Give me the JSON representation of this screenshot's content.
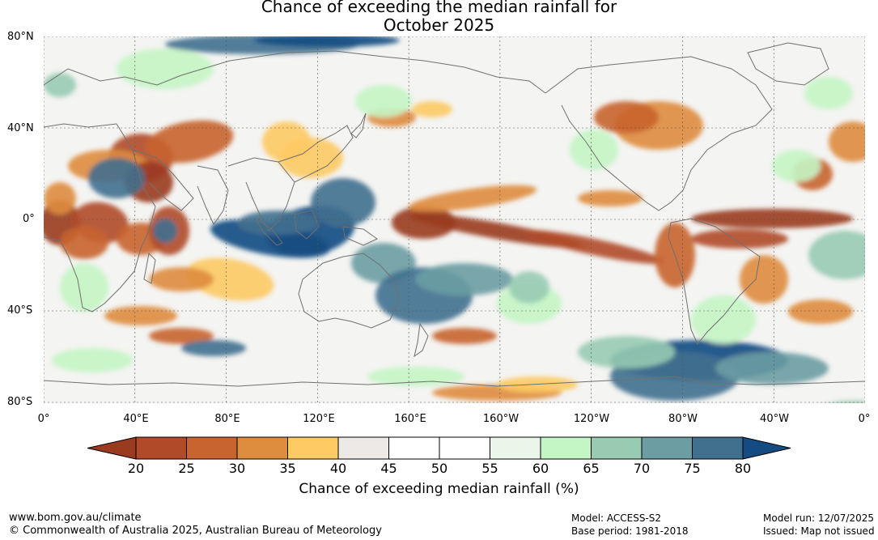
{
  "title": {
    "line1": "Chance of exceeding the median rainfall for",
    "line2": "October 2025"
  },
  "map": {
    "lat_labels": [
      "80°N",
      "40°N",
      "0°",
      "40°S",
      "80°S"
    ],
    "lon_labels": [
      "0°",
      "40°E",
      "80°E",
      "120°E",
      "160°E",
      "160°W",
      "120°W",
      "80°W",
      "40°W",
      "0°"
    ]
  },
  "colorbar": {
    "ticks": [
      "20",
      "25",
      "30",
      "35",
      "40",
      "45",
      "50",
      "55",
      "60",
      "65",
      "70",
      "75",
      "80"
    ],
    "colors": [
      "#9a3a1f",
      "#b04a28",
      "#c8642f",
      "#de8c3d",
      "#fdca64",
      "#ede9e6",
      "#ffffff",
      "#ffffff",
      "#e9f6e9",
      "#c4f5c4",
      "#98cbb2",
      "#6b9da3",
      "#41708f",
      "#134b82"
    ],
    "label": "Chance of exceeding median rainfall (%)"
  },
  "footer": {
    "url": "www.bom.gov.au/climate",
    "copyright": "© Commonwealth of Australia 2025, Australian Bureau of Meteorology",
    "model": "Model: ACCESS-S2",
    "base_period": "Base period: 1981-2018",
    "model_run": "Model run: 12/07/2025",
    "issued": "Issued: Map not issued"
  }
}
